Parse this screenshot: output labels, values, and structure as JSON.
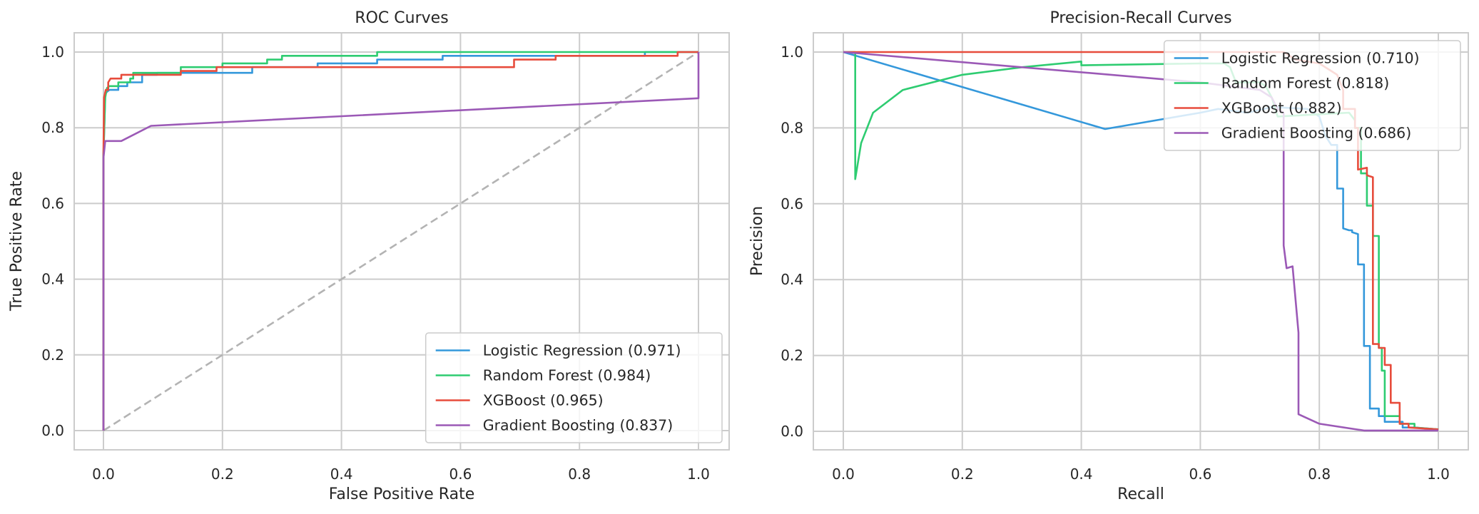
{
  "chart_data": [
    {
      "type": "line",
      "title": "ROC Curves",
      "xlabel": "False Positive Rate",
      "ylabel": "True Positive Rate",
      "xlim": [
        -0.05,
        1.05
      ],
      "ylim": [
        -0.05,
        1.05
      ],
      "xticks": [
        "0.0",
        "0.2",
        "0.4",
        "0.6",
        "0.8",
        "1.0"
      ],
      "yticks": [
        "0.0",
        "0.2",
        "0.4",
        "0.6",
        "0.8",
        "1.0"
      ],
      "grid": true,
      "legend_position": "lower-right",
      "diagonal": {
        "style": "dashed",
        "color": "#b3b3b3",
        "points": [
          [
            0,
            0
          ],
          [
            1,
            1
          ]
        ]
      },
      "series": [
        {
          "name": "Logistic Regression (0.971)",
          "color": "#3498db",
          "points": [
            [
              0,
              0
            ],
            [
              0,
              0.72
            ],
            [
              0.003,
              0.89
            ],
            [
              0.006,
              0.895
            ],
            [
              0.01,
              0.9
            ],
            [
              0.025,
              0.9
            ],
            [
              0.025,
              0.91
            ],
            [
              0.04,
              0.91
            ],
            [
              0.04,
              0.92
            ],
            [
              0.065,
              0.92
            ],
            [
              0.065,
              0.94
            ],
            [
              0.09,
              0.94
            ],
            [
              0.09,
              0.945
            ],
            [
              0.25,
              0.945
            ],
            [
              0.25,
              0.96
            ],
            [
              0.36,
              0.96
            ],
            [
              0.36,
              0.97
            ],
            [
              0.46,
              0.97
            ],
            [
              0.46,
              0.98
            ],
            [
              0.57,
              0.98
            ],
            [
              0.57,
              0.99
            ],
            [
              0.91,
              0.99
            ],
            [
              0.91,
              1.0
            ],
            [
              1,
              1
            ]
          ]
        },
        {
          "name": "Random Forest (0.984)",
          "color": "#2ecc71",
          "points": [
            [
              0,
              0
            ],
            [
              0,
              0.73
            ],
            [
              0.003,
              0.88
            ],
            [
              0.006,
              0.905
            ],
            [
              0.01,
              0.91
            ],
            [
              0.025,
              0.91
            ],
            [
              0.025,
              0.92
            ],
            [
              0.045,
              0.92
            ],
            [
              0.045,
              0.93
            ],
            [
              0.05,
              0.93
            ],
            [
              0.05,
              0.945
            ],
            [
              0.13,
              0.945
            ],
            [
              0.13,
              0.96
            ],
            [
              0.2,
              0.96
            ],
            [
              0.2,
              0.97
            ],
            [
              0.275,
              0.97
            ],
            [
              0.275,
              0.98
            ],
            [
              0.3,
              0.98
            ],
            [
              0.3,
              0.99
            ],
            [
              0.46,
              0.99
            ],
            [
              0.46,
              1.0
            ],
            [
              1,
              1
            ]
          ]
        },
        {
          "name": "XGBoost (0.965)",
          "color": "#e74c3c",
          "points": [
            [
              0,
              0
            ],
            [
              0,
              0.73
            ],
            [
              0.001,
              0.88
            ],
            [
              0.004,
              0.9
            ],
            [
              0.008,
              0.9
            ],
            [
              0.008,
              0.92
            ],
            [
              0.012,
              0.93
            ],
            [
              0.03,
              0.93
            ],
            [
              0.03,
              0.94
            ],
            [
              0.13,
              0.94
            ],
            [
              0.13,
              0.95
            ],
            [
              0.19,
              0.95
            ],
            [
              0.19,
              0.96
            ],
            [
              0.69,
              0.96
            ],
            [
              0.69,
              0.98
            ],
            [
              0.76,
              0.98
            ],
            [
              0.76,
              0.99
            ],
            [
              0.965,
              0.99
            ],
            [
              0.965,
              1.0
            ],
            [
              1,
              1
            ]
          ]
        },
        {
          "name": "Gradient Boosting (0.837)",
          "color": "#9b59b6",
          "points": [
            [
              0,
              0
            ],
            [
              0,
              0.72
            ],
            [
              0.003,
              0.765
            ],
            [
              0.03,
              0.765
            ],
            [
              0.08,
              0.805
            ],
            [
              1.0,
              0.878
            ],
            [
              1.0,
              1.0
            ]
          ]
        }
      ]
    },
    {
      "type": "line",
      "title": "Precision-Recall Curves",
      "xlabel": "Recall",
      "ylabel": "Precision",
      "xlim": [
        -0.05,
        1.05
      ],
      "ylim": [
        -0.05,
        1.05
      ],
      "xticks": [
        "0.0",
        "0.2",
        "0.4",
        "0.6",
        "0.8",
        "1.0"
      ],
      "yticks": [
        "0.0",
        "0.2",
        "0.4",
        "0.6",
        "0.8",
        "1.0"
      ],
      "grid": true,
      "legend_position": "upper-right",
      "series": [
        {
          "name": "Logistic Regression (0.710)",
          "color": "#3498db",
          "points": [
            [
              0,
              1.0
            ],
            [
              0.44,
              0.797
            ],
            [
              0.6,
              0.84
            ],
            [
              0.63,
              0.85
            ],
            [
              0.68,
              0.84
            ],
            [
              0.72,
              0.855
            ],
            [
              0.78,
              0.85
            ],
            [
              0.8,
              0.83
            ],
            [
              0.81,
              0.78
            ],
            [
              0.82,
              0.755
            ],
            [
              0.83,
              0.755
            ],
            [
              0.83,
              0.64
            ],
            [
              0.84,
              0.64
            ],
            [
              0.84,
              0.535
            ],
            [
              0.85,
              0.53
            ],
            [
              0.855,
              0.53
            ],
            [
              0.855,
              0.525
            ],
            [
              0.865,
              0.52
            ],
            [
              0.865,
              0.44
            ],
            [
              0.875,
              0.44
            ],
            [
              0.875,
              0.225
            ],
            [
              0.885,
              0.225
            ],
            [
              0.885,
              0.06
            ],
            [
              0.9,
              0.06
            ],
            [
              0.9,
              0.04
            ],
            [
              0.91,
              0.04
            ],
            [
              0.91,
              0.025
            ],
            [
              0.94,
              0.025
            ],
            [
              0.94,
              0.01
            ],
            [
              0.96,
              0.01
            ],
            [
              1.0,
              0.005
            ]
          ]
        },
        {
          "name": "Random Forest (0.818)",
          "color": "#2ecc71",
          "points": [
            [
              0,
              1.0
            ],
            [
              0.02,
              1.0
            ],
            [
              0.02,
              0.665
            ],
            [
              0.03,
              0.76
            ],
            [
              0.05,
              0.84
            ],
            [
              0.1,
              0.9
            ],
            [
              0.2,
              0.94
            ],
            [
              0.3,
              0.96
            ],
            [
              0.4,
              0.975
            ],
            [
              0.4,
              0.965
            ],
            [
              0.6,
              0.97
            ],
            [
              0.64,
              0.97
            ],
            [
              0.65,
              0.96
            ],
            [
              0.66,
              0.92
            ],
            [
              0.7,
              0.92
            ],
            [
              0.71,
              0.91
            ],
            [
              0.72,
              0.88
            ],
            [
              0.73,
              0.83
            ],
            [
              0.85,
              0.84
            ],
            [
              0.86,
              0.82
            ],
            [
              0.86,
              0.8
            ],
            [
              0.87,
              0.8
            ],
            [
              0.87,
              0.68
            ],
            [
              0.88,
              0.68
            ],
            [
              0.88,
              0.595
            ],
            [
              0.89,
              0.595
            ],
            [
              0.89,
              0.515
            ],
            [
              0.9,
              0.515
            ],
            [
              0.9,
              0.22
            ],
            [
              0.905,
              0.22
            ],
            [
              0.905,
              0.16
            ],
            [
              0.91,
              0.16
            ],
            [
              0.91,
              0.04
            ],
            [
              0.935,
              0.04
            ],
            [
              0.935,
              0.02
            ],
            [
              0.96,
              0.02
            ],
            [
              0.96,
              0.01
            ],
            [
              1.0,
              0.005
            ]
          ]
        },
        {
          "name": "XGBoost (0.882)",
          "color": "#e74c3c",
          "points": [
            [
              0,
              1.0
            ],
            [
              0.74,
              1.0
            ],
            [
              0.76,
              0.98
            ],
            [
              0.8,
              0.97
            ],
            [
              0.83,
              0.94
            ],
            [
              0.84,
              0.9
            ],
            [
              0.84,
              0.85
            ],
            [
              0.86,
              0.85
            ],
            [
              0.86,
              0.8
            ],
            [
              0.865,
              0.8
            ],
            [
              0.865,
              0.69
            ],
            [
              0.88,
              0.695
            ],
            [
              0.88,
              0.675
            ],
            [
              0.89,
              0.67
            ],
            [
              0.89,
              0.23
            ],
            [
              0.9,
              0.23
            ],
            [
              0.9,
              0.22
            ],
            [
              0.91,
              0.22
            ],
            [
              0.91,
              0.175
            ],
            [
              0.92,
              0.175
            ],
            [
              0.92,
              0.075
            ],
            [
              0.935,
              0.075
            ],
            [
              0.935,
              0.02
            ],
            [
              0.95,
              0.02
            ],
            [
              0.95,
              0.01
            ],
            [
              1.0,
              0.005
            ]
          ]
        },
        {
          "name": "Gradient Boosting (0.686)",
          "color": "#9b59b6",
          "points": [
            [
              0,
              1.0
            ],
            [
              0.6,
              0.92
            ],
            [
              0.7,
              0.9
            ],
            [
              0.72,
              0.88
            ],
            [
              0.73,
              0.85
            ],
            [
              0.74,
              0.84
            ],
            [
              0.74,
              0.49
            ],
            [
              0.745,
              0.43
            ],
            [
              0.755,
              0.435
            ],
            [
              0.765,
              0.26
            ],
            [
              0.765,
              0.045
            ],
            [
              0.8,
              0.02
            ],
            [
              0.875,
              0.002
            ],
            [
              1.0,
              0.002
            ]
          ]
        }
      ]
    }
  ]
}
